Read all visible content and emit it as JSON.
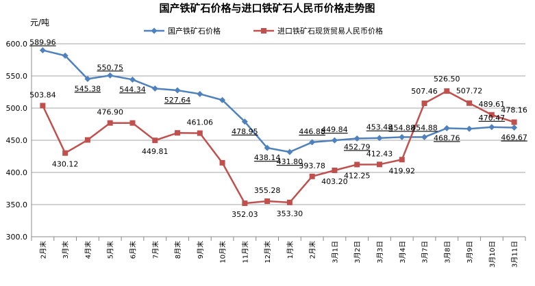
{
  "chart_data": {
    "type": "line",
    "title": "国产铁矿石价格与进口铁矿石人民币价格走势图",
    "ylabel": "元/吨",
    "ylim": [
      300,
      600
    ],
    "yticks": [
      "300.0",
      "350.0",
      "400.0",
      "450.0",
      "500.0",
      "550.0",
      "600.0"
    ],
    "grid": "horizontal",
    "legend_position": "top",
    "categories": [
      "2月末",
      "3月末",
      "4月末",
      "5月末",
      "6月末",
      "7月末",
      "8月末",
      "9月末",
      "10月末",
      "11月末",
      "12月末",
      "1月末",
      "2月末",
      "3月1日",
      "3月2日",
      "3月3日",
      "3月4日",
      "3月7日",
      "3月8日",
      "3月9日",
      "3月10日",
      "3月11日"
    ],
    "series": [
      {
        "name": "国产铁矿石价格",
        "color": "#4f81bd",
        "marker": "diamond",
        "values": [
          589.96,
          581.5,
          545.38,
          550.75,
          544.34,
          530.5,
          527.64,
          522.0,
          512.5,
          478.95,
          438.14,
          431.8,
          446.88,
          449.84,
          452.79,
          453.48,
          454.88,
          454.88,
          468.76,
          467.8,
          470.47,
          469.67
        ],
        "labels": [
          "589.96",
          "",
          "545.38",
          "550.75",
          "544.34",
          "",
          "527.64",
          "",
          "",
          "478.95",
          "438.14",
          "431.80",
          "446.88",
          "449.84",
          "452.79",
          "453.48",
          "454.88",
          "454.88",
          "468.76",
          "",
          "470.47",
          "469.67"
        ]
      },
      {
        "name": "进口铁矿石现货贸易人民币价格",
        "color": "#c0504d",
        "marker": "square",
        "values": [
          503.84,
          430.12,
          450.5,
          476.9,
          476.9,
          449.81,
          461.5,
          461.06,
          415.0,
          352.03,
          355.28,
          353.3,
          393.78,
          403.2,
          412.25,
          412.43,
          419.92,
          507.46,
          526.5,
          507.72,
          489.61,
          478.16
        ],
        "labels": [
          "503.84",
          "430.12",
          "",
          "476.90",
          "",
          "449.81",
          "",
          "461.06",
          "",
          "352.03",
          "355.28",
          "353.30",
          "393.78",
          "403.20",
          "412.25",
          "412.43",
          "419.92",
          "507.46",
          "526.50",
          "507.72",
          "489.61",
          "478.16"
        ]
      }
    ]
  }
}
